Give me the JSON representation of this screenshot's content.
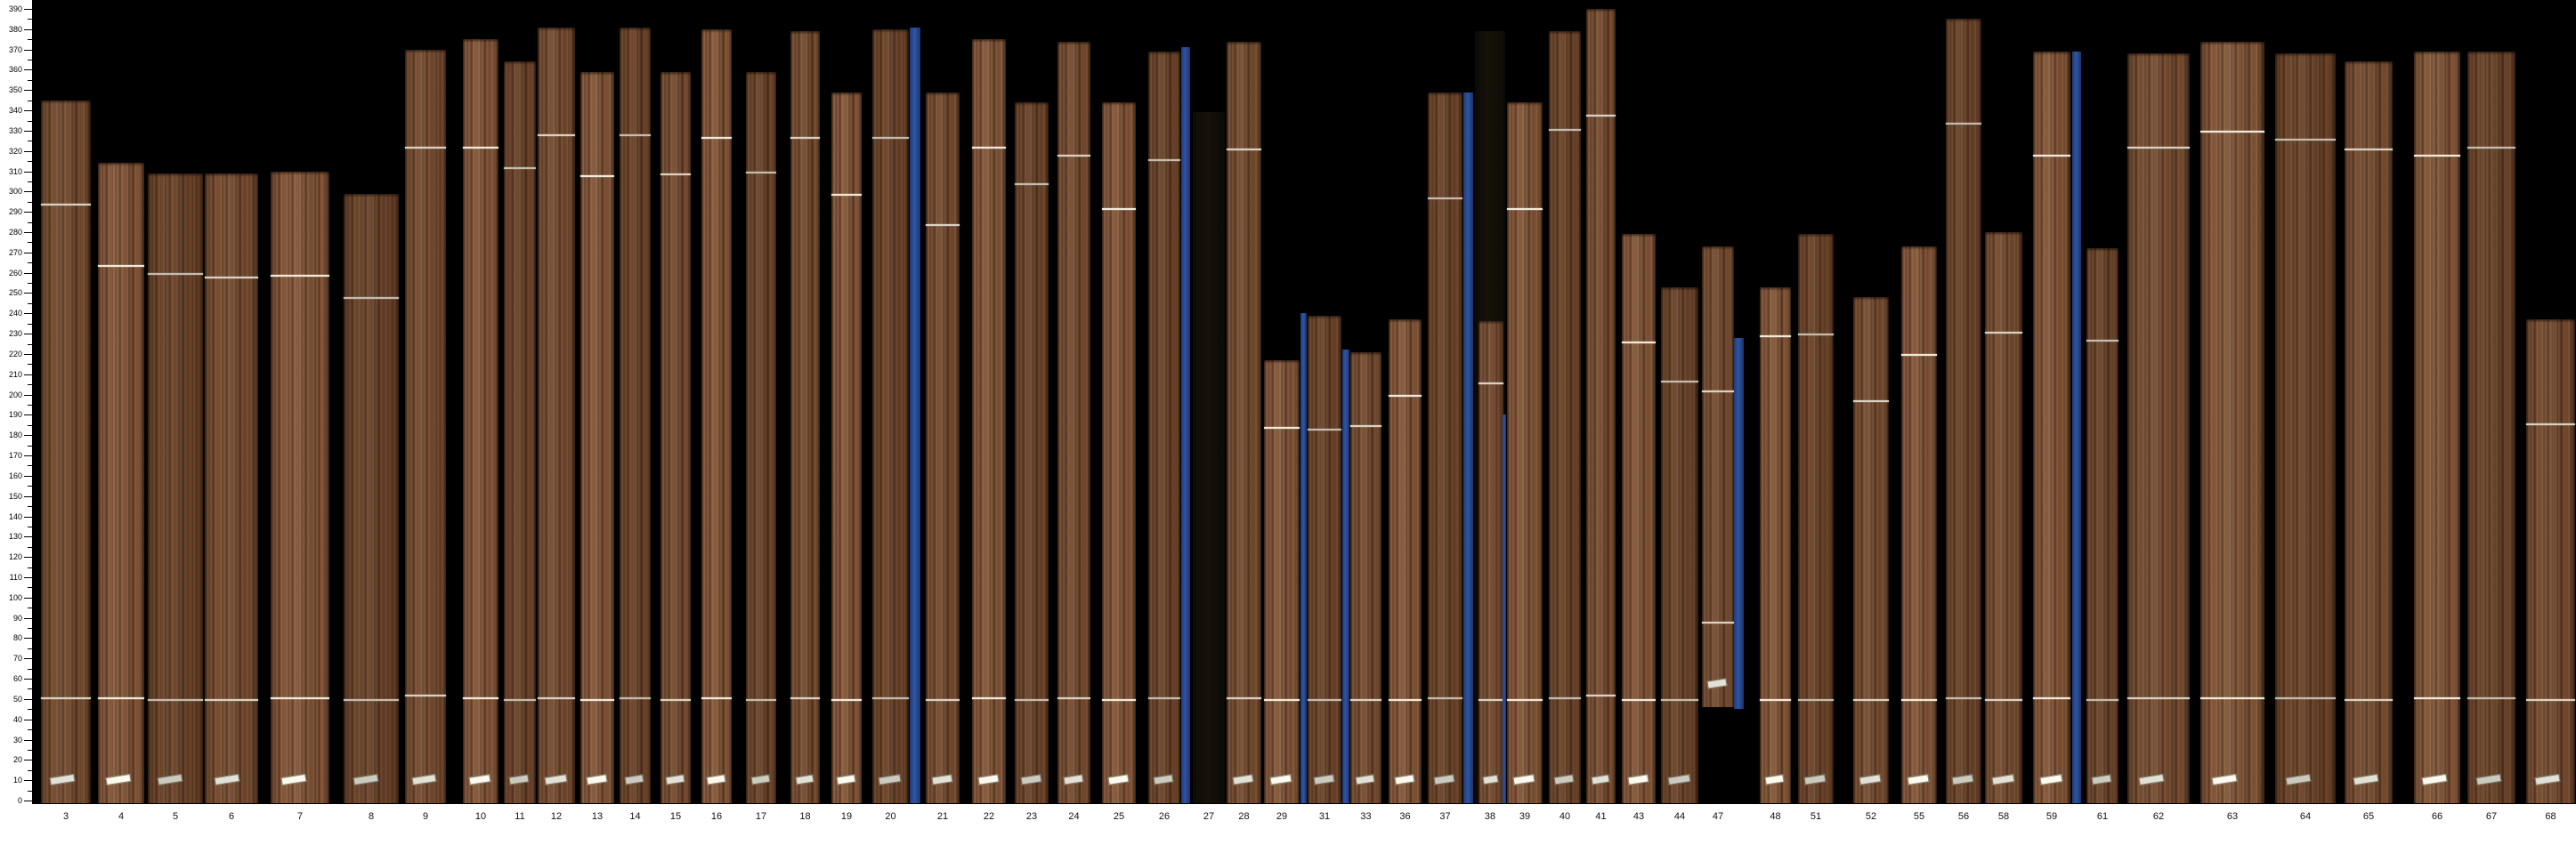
{
  "app": {
    "description": "veneer board scan strip chart, wood boards as bars on black background",
    "background_color": "#000000",
    "gutter_color": "#ffffff",
    "separator_color": "#2d4b8f",
    "wood_color": "#6f4a30",
    "mark_line_color": "#ded9ca",
    "sticker_color": "#eae7dc"
  },
  "chart_data": {
    "type": "bar",
    "title": "",
    "xlabel": "",
    "ylabel": "",
    "ylim": [
      0,
      390
    ],
    "y_tick_major_step": 10,
    "y_tick_minor_step": 5,
    "grid": false,
    "legend": false,
    "categories": [
      "3",
      "4",
      "5",
      "6",
      "7",
      "8",
      "9",
      "10",
      "11",
      "12",
      "13",
      "14",
      "15",
      "16",
      "17",
      "18",
      "19",
      "20",
      "21",
      "22",
      "23",
      "24",
      "25",
      "26",
      "27",
      "28",
      "29",
      "31",
      "33",
      "36",
      "37",
      "38",
      "39",
      "40",
      "41",
      "43",
      "44",
      "47",
      "48",
      "51",
      "52",
      "55",
      "56",
      "58",
      "59",
      "61",
      "62",
      "63",
      "64",
      "65",
      "66",
      "67",
      "68"
    ],
    "values": [
      345,
      314,
      309,
      309,
      310,
      299,
      370,
      375,
      364,
      381,
      359,
      381,
      359,
      380,
      359,
      379,
      349,
      380,
      349,
      375,
      344,
      374,
      344,
      369,
      339,
      374,
      217,
      239,
      221,
      237,
      349,
      379,
      344,
      379,
      390,
      279,
      253,
      273,
      253,
      279,
      248,
      273,
      385,
      280,
      369,
      272,
      368,
      374,
      368,
      364,
      369,
      369,
      237
    ],
    "notes": "Each bar is a scanned wood veneer board; board 27 and slot 38 are dark/empty columns; blue slats are separators; board 47 hangs (bottom at 46); thin white cross lines and a small white label sticker appear on each board.",
    "bars": [
      {
        "label": "3",
        "x": 46,
        "w": 56,
        "top": 345,
        "kind": "wood",
        "lines": [
          294,
          51
        ],
        "t": 0
      },
      {
        "label": "4",
        "x": 110,
        "w": 52,
        "top": 314,
        "kind": "wood",
        "lines": [
          264,
          51
        ],
        "t": 1
      },
      {
        "label": "5",
        "x": 166,
        "w": 62,
        "top": 309,
        "kind": "wood",
        "lines": [
          260,
          50
        ],
        "t": 2
      },
      {
        "label": "6",
        "x": 230,
        "w": 60,
        "top": 309,
        "kind": "wood",
        "lines": [
          258,
          50
        ],
        "t": 0
      },
      {
        "label": "7",
        "x": 304,
        "w": 66,
        "top": 310,
        "kind": "wood",
        "lines": [
          259,
          51
        ],
        "t": 1
      },
      {
        "label": "8",
        "x": 386,
        "w": 62,
        "top": 299,
        "kind": "wood",
        "lines": [
          248,
          50
        ],
        "t": 2
      },
      {
        "label": "9",
        "x": 455,
        "w": 46,
        "top": 370,
        "kind": "wood",
        "lines": [
          322,
          52
        ],
        "t": 0
      },
      {
        "label": "10",
        "x": 520,
        "w": 40,
        "top": 375,
        "kind": "wood",
        "lines": [
          322,
          51
        ],
        "t": 1
      },
      {
        "label": "11",
        "x": 566,
        "w": 36,
        "top": 364,
        "kind": "wood",
        "lines": [
          312,
          50
        ],
        "t": 2
      },
      {
        "label": "12",
        "x": 604,
        "w": 42,
        "top": 381,
        "kind": "wood",
        "lines": [
          328,
          51
        ],
        "t": 0
      },
      {
        "label": "13",
        "x": 652,
        "w": 38,
        "top": 359,
        "kind": "wood",
        "lines": [
          308,
          50
        ],
        "t": 1
      },
      {
        "label": "14",
        "x": 696,
        "w": 35,
        "top": 381,
        "kind": "wood",
        "lines": [
          328,
          51
        ],
        "t": 2
      },
      {
        "label": "15",
        "x": 742,
        "w": 34,
        "top": 359,
        "kind": "wood",
        "lines": [
          309,
          50
        ],
        "t": 0
      },
      {
        "label": "16",
        "x": 788,
        "w": 34,
        "top": 380,
        "kind": "wood",
        "lines": [
          327,
          51
        ],
        "t": 1
      },
      {
        "label": "17",
        "x": 838,
        "w": 34,
        "top": 359,
        "kind": "wood",
        "lines": [
          310,
          50
        ],
        "t": 2
      },
      {
        "label": "18",
        "x": 888,
        "w": 33,
        "top": 379,
        "kind": "wood",
        "lines": [
          327,
          51
        ],
        "t": 0
      },
      {
        "label": "19",
        "x": 934,
        "w": 34,
        "top": 349,
        "kind": "wood",
        "lines": [
          299,
          50
        ],
        "t": 1
      },
      {
        "label": "20",
        "x": 980,
        "w": 41,
        "top": 380,
        "kind": "wood",
        "lines": [
          327,
          51
        ],
        "t": 2
      },
      {
        "label": null,
        "x": 1022,
        "w": 12,
        "top": 381,
        "kind": "blue"
      },
      {
        "label": "21",
        "x": 1040,
        "w": 38,
        "top": 349,
        "kind": "wood",
        "lines": [
          284,
          50
        ],
        "t": 0
      },
      {
        "label": "22",
        "x": 1092,
        "w": 38,
        "top": 375,
        "kind": "wood",
        "lines": [
          322,
          51
        ],
        "t": 1
      },
      {
        "label": "23",
        "x": 1140,
        "w": 38,
        "top": 344,
        "kind": "wood",
        "lines": [
          304,
          50
        ],
        "t": 2
      },
      {
        "label": "24",
        "x": 1188,
        "w": 37,
        "top": 374,
        "kind": "wood",
        "lines": [
          318,
          51
        ],
        "t": 0
      },
      {
        "label": "25",
        "x": 1238,
        "w": 38,
        "top": 344,
        "kind": "wood",
        "lines": [
          292,
          50
        ],
        "t": 1
      },
      {
        "label": "26",
        "x": 1290,
        "w": 36,
        "top": 369,
        "kind": "wood",
        "lines": [
          316,
          51
        ],
        "t": 2
      },
      {
        "label": null,
        "x": 1327,
        "w": 10,
        "top": 371,
        "kind": "blue"
      },
      {
        "label": "27",
        "x": 1340,
        "w": 36,
        "top": 339,
        "kind": "dark",
        "lines": []
      },
      {
        "label": "28",
        "x": 1378,
        "w": 39,
        "top": 374,
        "kind": "wood",
        "lines": [
          321,
          51
        ],
        "t": 0
      },
      {
        "label": "29",
        "x": 1420,
        "w": 40,
        "top": 217,
        "kind": "wood",
        "lines": [
          184,
          50
        ],
        "t": 1
      },
      {
        "label": null,
        "x": 1461,
        "w": 7,
        "top": 240,
        "kind": "blue"
      },
      {
        "label": "31",
        "x": 1469,
        "w": 38,
        "top": 239,
        "kind": "wood",
        "lines": [
          183,
          50
        ],
        "t": 2
      },
      {
        "label": null,
        "x": 1508,
        "w": 8,
        "top": 222,
        "kind": "blue"
      },
      {
        "label": "33",
        "x": 1517,
        "w": 35,
        "top": 221,
        "kind": "wood",
        "lines": [
          185,
          50
        ],
        "t": 0
      },
      {
        "label": "36",
        "x": 1560,
        "w": 37,
        "top": 237,
        "kind": "wood",
        "lines": [
          200,
          50
        ],
        "t": 1
      },
      {
        "label": "37",
        "x": 1604,
        "w": 39,
        "top": 349,
        "kind": "wood",
        "lines": [
          297,
          51
        ],
        "t": 2
      },
      {
        "label": null,
        "x": 1644,
        "w": 11,
        "top": 349,
        "kind": "blue"
      },
      {
        "label": "38",
        "x": 1657,
        "w": 34,
        "top": 379,
        "kind": "dark",
        "lines": []
      },
      {
        "label": null,
        "x": 1661,
        "w": 28,
        "top": 236,
        "kind": "wood",
        "lines": [
          206,
          50
        ],
        "t": 0
      },
      {
        "label": null,
        "x": 1688,
        "w": 4,
        "top": 190,
        "kind": "blue"
      },
      {
        "label": "39",
        "x": 1693,
        "w": 40,
        "top": 344,
        "kind": "wood",
        "lines": [
          292,
          50
        ],
        "t": 1
      },
      {
        "label": "40",
        "x": 1740,
        "w": 36,
        "top": 379,
        "kind": "wood",
        "lines": [
          331,
          51
        ],
        "t": 2
      },
      {
        "label": "41",
        "x": 1782,
        "w": 33,
        "top": 390,
        "kind": "wood",
        "lines": [
          338,
          52
        ],
        "t": 0
      },
      {
        "label": "43",
        "x": 1822,
        "w": 38,
        "top": 279,
        "kind": "wood",
        "lines": [
          226,
          50
        ],
        "t": 1
      },
      {
        "label": "44",
        "x": 1866,
        "w": 42,
        "top": 253,
        "kind": "wood",
        "lines": [
          207,
          50
        ],
        "t": 2
      },
      {
        "label": "47",
        "x": 1912,
        "w": 36,
        "top": 273,
        "bottom": 46,
        "kind": "wood",
        "lines": [
          202,
          88
        ],
        "t": 0
      },
      {
        "label": null,
        "x": 1948,
        "w": 11,
        "top": 228,
        "bottom": 45,
        "kind": "blue"
      },
      {
        "label": "48",
        "x": 1977,
        "w": 35,
        "top": 253,
        "kind": "wood",
        "lines": [
          229,
          50
        ],
        "t": 1
      },
      {
        "label": "51",
        "x": 2020,
        "w": 40,
        "top": 279,
        "kind": "wood",
        "lines": [
          230,
          50
        ],
        "t": 2
      },
      {
        "label": "52",
        "x": 2082,
        "w": 40,
        "top": 248,
        "kind": "wood",
        "lines": [
          197,
          50
        ],
        "t": 0
      },
      {
        "label": "55",
        "x": 2136,
        "w": 40,
        "top": 273,
        "kind": "wood",
        "lines": [
          220,
          50
        ],
        "t": 1
      },
      {
        "label": "56",
        "x": 2186,
        "w": 40,
        "top": 385,
        "kind": "wood",
        "lines": [
          334,
          51
        ],
        "t": 2
      },
      {
        "label": "58",
        "x": 2230,
        "w": 42,
        "top": 280,
        "kind": "wood",
        "lines": [
          231,
          50
        ],
        "t": 0
      },
      {
        "label": "59",
        "x": 2284,
        "w": 42,
        "top": 369,
        "kind": "wood",
        "lines": [
          318,
          51
        ],
        "t": 1
      },
      {
        "label": null,
        "x": 2328,
        "w": 10,
        "top": 369,
        "kind": "blue"
      },
      {
        "label": "61",
        "x": 2344,
        "w": 36,
        "top": 272,
        "kind": "wood",
        "lines": [
          227,
          50
        ],
        "t": 2
      },
      {
        "label": "62",
        "x": 2390,
        "w": 70,
        "top": 368,
        "kind": "wood",
        "lines": [
          322,
          51
        ],
        "t": 0
      },
      {
        "label": "63",
        "x": 2472,
        "w": 72,
        "top": 374,
        "kind": "wood",
        "lines": [
          330,
          51
        ],
        "t": 1
      },
      {
        "label": "64",
        "x": 2556,
        "w": 68,
        "top": 368,
        "kind": "wood",
        "lines": [
          326,
          51
        ],
        "t": 2
      },
      {
        "label": "65",
        "x": 2634,
        "w": 54,
        "top": 364,
        "kind": "wood",
        "lines": [
          321,
          50
        ],
        "t": 0
      },
      {
        "label": "66",
        "x": 2712,
        "w": 52,
        "top": 369,
        "kind": "wood",
        "lines": [
          318,
          51
        ],
        "t": 1
      },
      {
        "label": "67",
        "x": 2772,
        "w": 54,
        "top": 369,
        "kind": "wood",
        "lines": [
          322,
          51
        ],
        "t": 2
      },
      {
        "label": "68",
        "x": 2838,
        "w": 55,
        "top": 237,
        "kind": "wood",
        "lines": [
          186,
          50
        ],
        "t": 0
      }
    ]
  }
}
